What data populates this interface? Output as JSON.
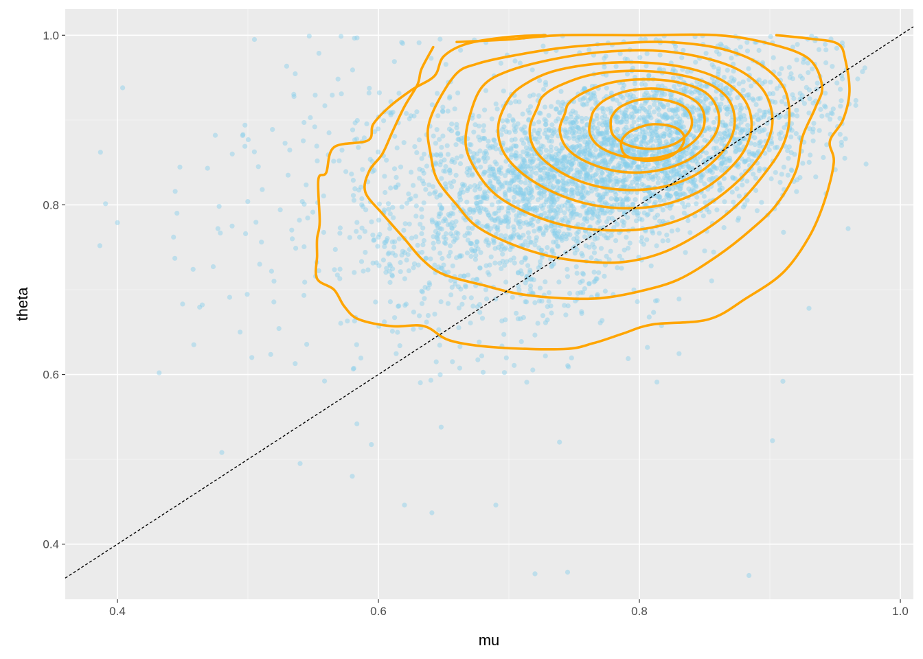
{
  "chart_data": {
    "type": "scatter",
    "title": "",
    "xlabel": "mu",
    "ylabel": "theta",
    "xlim": [
      0.36,
      1.01
    ],
    "ylim": [
      0.335,
      1.031
    ],
    "x_ticks": [
      0.4,
      0.6,
      0.8,
      1.0
    ],
    "x_tick_labels": [
      "0.4",
      "0.6",
      "0.8",
      "1.0"
    ],
    "y_ticks": [
      0.4,
      0.6,
      0.8,
      1.0
    ],
    "y_tick_labels": [
      "0.4",
      "0.6",
      "0.8",
      "1.0"
    ],
    "grid": true,
    "legend": "none",
    "colors": {
      "panel_background": "#EBEBEB",
      "grid_major": "#FFFFFF",
      "points": "#87CEEB",
      "contours": "#FFA500",
      "reference_line": "#000000"
    },
    "reference_line": {
      "type": "identity",
      "slope": 1,
      "intercept": 0,
      "style": "dashed"
    },
    "points": {
      "approximate_count": 6000,
      "alpha": 0.45,
      "distribution": "density peak near mu 0.81, theta 0.89; theta capped at 1.0; sparse tail toward lower mu and lower theta",
      "outliers": [
        [
          0.387,
          0.862
        ],
        [
          0.4,
          0.779
        ],
        [
          0.404,
          0.938
        ],
        [
          0.432,
          0.602
        ],
        [
          0.443,
          0.762
        ],
        [
          0.444,
          0.737
        ],
        [
          0.458,
          0.724
        ],
        [
          0.475,
          0.882
        ],
        [
          0.477,
          0.772
        ],
        [
          0.48,
          0.508
        ],
        [
          0.486,
          0.691
        ],
        [
          0.488,
          0.86
        ],
        [
          0.465,
          0.682
        ],
        [
          0.494,
          0.65
        ],
        [
          0.503,
          0.62
        ],
        [
          0.505,
          0.995
        ],
        [
          0.508,
          0.845
        ],
        [
          0.509,
          0.73
        ],
        [
          0.511,
          0.818
        ],
        [
          0.52,
          0.71
        ],
        [
          0.534,
          0.76
        ],
        [
          0.54,
          0.495
        ],
        [
          0.58,
          0.48
        ],
        [
          0.62,
          0.446
        ],
        [
          0.641,
          0.437
        ],
        [
          0.69,
          0.446
        ],
        [
          0.72,
          0.365
        ],
        [
          0.745,
          0.367
        ],
        [
          0.884,
          0.363
        ],
        [
          0.93,
          0.678
        ],
        [
          0.971,
          0.957
        ],
        [
          0.96,
          0.772
        ],
        [
          0.902,
          0.522
        ],
        [
          0.91,
          0.592
        ],
        [
          0.955,
          0.87
        ]
      ]
    },
    "contours": [
      [
        [
          0.728,
          1.0
        ],
        [
          0.7,
          0.998
        ],
        [
          0.668,
          0.99
        ],
        [
          0.65,
          0.975
        ],
        [
          0.643,
          0.952
        ],
        [
          0.626,
          0.936
        ],
        [
          0.608,
          0.915
        ],
        [
          0.596,
          0.895
        ],
        [
          0.592,
          0.876
        ],
        [
          0.566,
          0.868
        ],
        [
          0.56,
          0.838
        ],
        [
          0.554,
          0.83
        ],
        [
          0.555,
          0.78
        ],
        [
          0.553,
          0.76
        ],
        [
          0.553,
          0.74
        ],
        [
          0.553,
          0.713
        ],
        [
          0.566,
          0.7
        ],
        [
          0.574,
          0.68
        ],
        [
          0.585,
          0.665
        ],
        [
          0.61,
          0.657
        ],
        [
          0.635,
          0.657
        ],
        [
          0.655,
          0.64
        ],
        [
          0.69,
          0.632
        ],
        [
          0.742,
          0.63
        ],
        [
          0.765,
          0.637
        ],
        [
          0.787,
          0.648
        ],
        [
          0.81,
          0.659
        ],
        [
          0.853,
          0.665
        ],
        [
          0.882,
          0.69
        ],
        [
          0.91,
          0.72
        ],
        [
          0.93,
          0.762
        ],
        [
          0.942,
          0.805
        ],
        [
          0.949,
          0.85
        ],
        [
          0.946,
          0.875
        ],
        [
          0.956,
          0.9
        ],
        [
          0.961,
          0.933
        ],
        [
          0.958,
          0.97
        ],
        [
          0.952,
          0.99
        ],
        [
          0.93,
          0.996
        ],
        [
          0.905,
          1.0
        ]
      ],
      [
        [
          0.642,
          0.986
        ],
        [
          0.633,
          0.96
        ],
        [
          0.63,
          0.942
        ],
        [
          0.62,
          0.916
        ],
        [
          0.611,
          0.887
        ],
        [
          0.603,
          0.86
        ],
        [
          0.593,
          0.84
        ],
        [
          0.59,
          0.815
        ],
        [
          0.604,
          0.788
        ],
        [
          0.62,
          0.76
        ],
        [
          0.634,
          0.735
        ],
        [
          0.65,
          0.718
        ],
        [
          0.681,
          0.705
        ],
        [
          0.708,
          0.695
        ],
        [
          0.74,
          0.69
        ],
        [
          0.77,
          0.69
        ],
        [
          0.8,
          0.698
        ],
        [
          0.83,
          0.712
        ],
        [
          0.86,
          0.74
        ],
        [
          0.885,
          0.77
        ],
        [
          0.905,
          0.8
        ],
        [
          0.92,
          0.84
        ],
        [
          0.925,
          0.88
        ],
        [
          0.935,
          0.915
        ],
        [
          0.94,
          0.94
        ],
        [
          0.93,
          0.972
        ],
        [
          0.9,
          0.99
        ],
        [
          0.86,
          1.0
        ],
        [
          0.8,
          1.0
        ],
        [
          0.74,
          1.0
        ],
        [
          0.7,
          0.995
        ],
        [
          0.66,
          0.992
        ]
      ],
      [
        [
          0.66,
          0.955
        ],
        [
          0.645,
          0.92
        ],
        [
          0.638,
          0.89
        ],
        [
          0.64,
          0.86
        ],
        [
          0.645,
          0.83
        ],
        [
          0.66,
          0.8
        ],
        [
          0.675,
          0.775
        ],
        [
          0.7,
          0.755
        ],
        [
          0.73,
          0.74
        ],
        [
          0.76,
          0.733
        ],
        [
          0.79,
          0.733
        ],
        [
          0.82,
          0.745
        ],
        [
          0.85,
          0.77
        ],
        [
          0.875,
          0.8
        ],
        [
          0.895,
          0.835
        ],
        [
          0.91,
          0.87
        ],
        [
          0.915,
          0.905
        ],
        [
          0.91,
          0.94
        ],
        [
          0.89,
          0.968
        ],
        [
          0.86,
          0.985
        ],
        [
          0.82,
          0.992
        ],
        [
          0.78,
          0.99
        ],
        [
          0.74,
          0.985
        ],
        [
          0.7,
          0.975
        ],
        [
          0.675,
          0.966
        ]
      ],
      [
        [
          0.68,
          0.94
        ],
        [
          0.67,
          0.905
        ],
        [
          0.667,
          0.87
        ],
        [
          0.675,
          0.84
        ],
        [
          0.69,
          0.812
        ],
        [
          0.715,
          0.79
        ],
        [
          0.745,
          0.775
        ],
        [
          0.775,
          0.77
        ],
        [
          0.805,
          0.772
        ],
        [
          0.835,
          0.785
        ],
        [
          0.86,
          0.808
        ],
        [
          0.882,
          0.838
        ],
        [
          0.897,
          0.87
        ],
        [
          0.902,
          0.902
        ],
        [
          0.895,
          0.935
        ],
        [
          0.875,
          0.96
        ],
        [
          0.845,
          0.975
        ],
        [
          0.81,
          0.982
        ],
        [
          0.77,
          0.98
        ],
        [
          0.735,
          0.972
        ],
        [
          0.7,
          0.958
        ]
      ],
      [
        [
          0.7,
          0.925
        ],
        [
          0.692,
          0.895
        ],
        [
          0.695,
          0.865
        ],
        [
          0.708,
          0.84
        ],
        [
          0.73,
          0.818
        ],
        [
          0.758,
          0.802
        ],
        [
          0.788,
          0.796
        ],
        [
          0.818,
          0.8
        ],
        [
          0.845,
          0.815
        ],
        [
          0.866,
          0.838
        ],
        [
          0.881,
          0.866
        ],
        [
          0.886,
          0.896
        ],
        [
          0.88,
          0.925
        ],
        [
          0.862,
          0.948
        ],
        [
          0.835,
          0.962
        ],
        [
          0.8,
          0.968
        ],
        [
          0.765,
          0.966
        ],
        [
          0.733,
          0.957
        ],
        [
          0.712,
          0.942
        ]
      ],
      [
        [
          0.722,
          0.915
        ],
        [
          0.716,
          0.89
        ],
        [
          0.72,
          0.865
        ],
        [
          0.735,
          0.843
        ],
        [
          0.758,
          0.826
        ],
        [
          0.785,
          0.818
        ],
        [
          0.814,
          0.82
        ],
        [
          0.84,
          0.833
        ],
        [
          0.858,
          0.853
        ],
        [
          0.87,
          0.878
        ],
        [
          0.873,
          0.903
        ],
        [
          0.867,
          0.927
        ],
        [
          0.85,
          0.945
        ],
        [
          0.824,
          0.955
        ],
        [
          0.793,
          0.958
        ],
        [
          0.762,
          0.953
        ],
        [
          0.738,
          0.94
        ],
        [
          0.726,
          0.928
        ]
      ],
      [
        [
          0.743,
          0.908
        ],
        [
          0.739,
          0.888
        ],
        [
          0.745,
          0.866
        ],
        [
          0.762,
          0.849
        ],
        [
          0.786,
          0.839
        ],
        [
          0.812,
          0.84
        ],
        [
          0.835,
          0.851
        ],
        [
          0.851,
          0.869
        ],
        [
          0.86,
          0.89
        ],
        [
          0.86,
          0.912
        ],
        [
          0.851,
          0.932
        ],
        [
          0.831,
          0.944
        ],
        [
          0.805,
          0.948
        ],
        [
          0.778,
          0.944
        ],
        [
          0.757,
          0.932
        ],
        [
          0.746,
          0.92
        ]
      ],
      [
        [
          0.763,
          0.902
        ],
        [
          0.762,
          0.884
        ],
        [
          0.77,
          0.868
        ],
        [
          0.788,
          0.857
        ],
        [
          0.81,
          0.855
        ],
        [
          0.831,
          0.864
        ],
        [
          0.845,
          0.88
        ],
        [
          0.85,
          0.899
        ],
        [
          0.846,
          0.918
        ],
        [
          0.832,
          0.931
        ],
        [
          0.812,
          0.937
        ],
        [
          0.79,
          0.934
        ],
        [
          0.774,
          0.924
        ],
        [
          0.766,
          0.913
        ]
      ],
      [
        [
          0.778,
          0.898
        ],
        [
          0.78,
          0.882
        ],
        [
          0.792,
          0.87
        ],
        [
          0.81,
          0.866
        ],
        [
          0.827,
          0.872
        ],
        [
          0.838,
          0.886
        ],
        [
          0.84,
          0.902
        ],
        [
          0.834,
          0.916
        ],
        [
          0.818,
          0.924
        ],
        [
          0.8,
          0.924
        ],
        [
          0.786,
          0.916
        ],
        [
          0.78,
          0.907
        ]
      ],
      [
        [
          0.786,
          0.87
        ],
        [
          0.79,
          0.858
        ],
        [
          0.805,
          0.852
        ],
        [
          0.822,
          0.856
        ],
        [
          0.832,
          0.868
        ],
        [
          0.834,
          0.882
        ],
        [
          0.826,
          0.892
        ],
        [
          0.81,
          0.895
        ],
        [
          0.796,
          0.889
        ],
        [
          0.788,
          0.88
        ]
      ]
    ]
  }
}
